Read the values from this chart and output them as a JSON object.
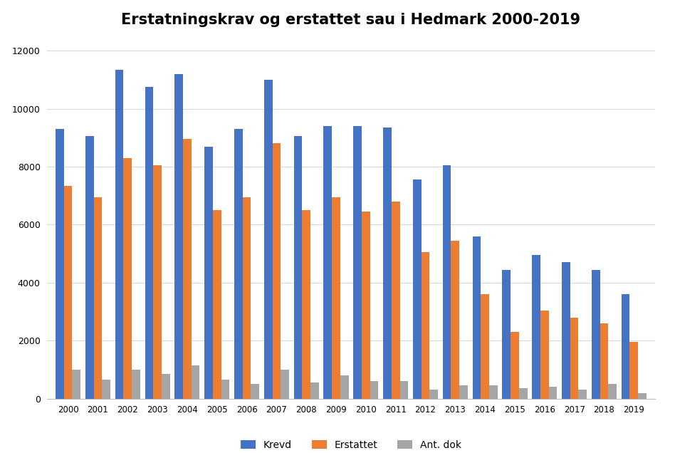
{
  "title": "Erstatningskrav og erstattet sau i Hedmark 2000-2019",
  "years": [
    2000,
    2001,
    2002,
    2003,
    2004,
    2005,
    2006,
    2007,
    2008,
    2009,
    2010,
    2011,
    2012,
    2013,
    2014,
    2015,
    2016,
    2017,
    2018,
    2019
  ],
  "krevd": [
    9300,
    9050,
    11350,
    10750,
    11200,
    8700,
    9300,
    11000,
    9050,
    9400,
    9400,
    9350,
    7550,
    8050,
    5600,
    4450,
    4950,
    4700,
    4450,
    3600
  ],
  "erstattet": [
    7350,
    6950,
    8300,
    8050,
    8950,
    6500,
    6950,
    8800,
    6500,
    6950,
    6450,
    6800,
    5050,
    5450,
    3600,
    2300,
    3050,
    2800,
    2600,
    1950
  ],
  "ant_dok": [
    1000,
    650,
    1000,
    850,
    1150,
    650,
    500,
    1000,
    550,
    800,
    600,
    600,
    300,
    450,
    450,
    350,
    400,
    300,
    500,
    200
  ],
  "color_krevd": "#4472C4",
  "color_erstattet": "#ED7D31",
  "color_ant_dok": "#A5A5A5",
  "ylim": [
    0,
    12500
  ],
  "yticks": [
    0,
    2000,
    4000,
    6000,
    8000,
    10000,
    12000
  ],
  "legend_labels": [
    "Krevd",
    "Erstattet",
    "Ant. dok"
  ],
  "background_color": "#FFFFFF",
  "grid_color": "#D9D9D9"
}
